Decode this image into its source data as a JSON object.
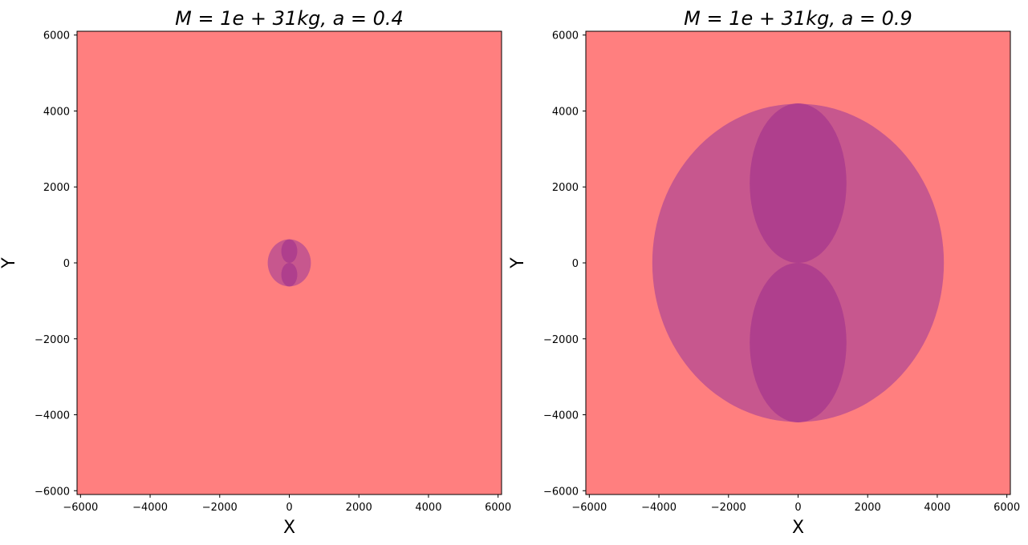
{
  "chart_data": [
    {
      "type": "area",
      "title": "M = 1e + 31kg, a = 0.4",
      "xlabel": "X",
      "ylabel": "Y",
      "xlim": [
        -6100,
        6100
      ],
      "ylim": [
        -6100,
        6100
      ],
      "xticks": [
        -6000,
        -4000,
        -2000,
        0,
        2000,
        4000,
        6000
      ],
      "yticks": [
        -6000,
        -4000,
        -2000,
        0,
        2000,
        4000,
        6000
      ],
      "tick_labels_x": [
        "−6000",
        "−4000",
        "−2000",
        "0",
        "2000",
        "4000",
        "6000"
      ],
      "tick_labels_y": [
        "−6000",
        "−4000",
        "−2000",
        "0",
        "2000",
        "4000",
        "6000"
      ],
      "grid": false,
      "background_color": "#ff7f7f",
      "regions": [
        {
          "shape": "ellipse",
          "cx": 0,
          "cy": 0,
          "rx": 620,
          "ry": 620,
          "color": "#c7578e"
        },
        {
          "shape": "ellipse",
          "cx": 0,
          "cy": 310,
          "rx": 230,
          "ry": 310,
          "color": "#af3f8d"
        },
        {
          "shape": "ellipse",
          "cx": 0,
          "cy": -310,
          "rx": 230,
          "ry": 310,
          "color": "#af3f8d"
        }
      ]
    },
    {
      "type": "area",
      "title": "M = 1e + 31kg, a = 0.9",
      "xlabel": "X",
      "ylabel": "Y",
      "xlim": [
        -6100,
        6100
      ],
      "ylim": [
        -6100,
        6100
      ],
      "xticks": [
        -6000,
        -4000,
        -2000,
        0,
        2000,
        4000,
        6000
      ],
      "yticks": [
        -6000,
        -4000,
        -2000,
        0,
        2000,
        4000,
        6000
      ],
      "tick_labels_x": [
        "−6000",
        "−4000",
        "−2000",
        "0",
        "2000",
        "4000",
        "6000"
      ],
      "tick_labels_y": [
        "−6000",
        "−4000",
        "−2000",
        "0",
        "2000",
        "4000",
        "6000"
      ],
      "grid": false,
      "background_color": "#ff7f7f",
      "regions": [
        {
          "shape": "ellipse",
          "cx": 0,
          "cy": 0,
          "rx": 4190,
          "ry": 4190,
          "color": "#c7578e"
        },
        {
          "shape": "ellipse",
          "cx": 0,
          "cy": 2100,
          "rx": 1390,
          "ry": 2100,
          "color": "#af3f8d"
        },
        {
          "shape": "ellipse",
          "cx": 0,
          "cy": -2100,
          "rx": 1390,
          "ry": 2100,
          "color": "#af3f8d"
        }
      ]
    }
  ]
}
